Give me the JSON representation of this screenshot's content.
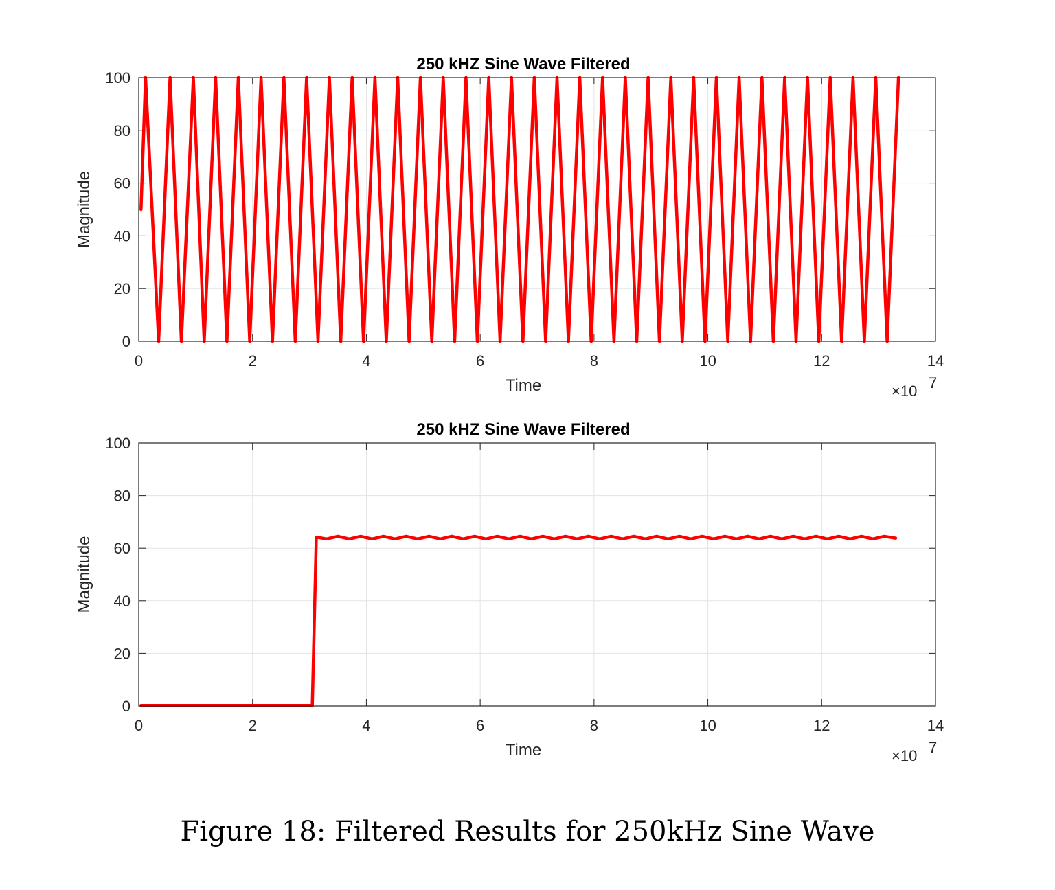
{
  "caption": "Figure 18: Filtered Results for 250kHz Sine Wave",
  "chart_data": [
    {
      "type": "line",
      "title": "250 kHZ Sine Wave Filtered",
      "xlabel": "Time",
      "ylabel": "Magnitude",
      "x_exponent_label": "×10",
      "x_exponent": "7",
      "xlim": [
        0,
        14
      ],
      "ylim": [
        0,
        100
      ],
      "xticks": [
        "0",
        "2",
        "4",
        "6",
        "8",
        "10",
        "12",
        "14"
      ],
      "yticks": [
        "0",
        "20",
        "40",
        "60",
        "80",
        "100"
      ],
      "grid": true,
      "color": "#ff0000",
      "series": [
        {
          "x": [
            0.04,
            0.12,
            0.35,
            0.55,
            0.75,
            0.96,
            1.15,
            1.35,
            1.55,
            1.75,
            1.95,
            2.15,
            2.35,
            2.55,
            2.75,
            2.95,
            3.15,
            3.35,
            3.55,
            3.75,
            3.95,
            4.15,
            4.35,
            4.55,
            4.75,
            4.95,
            5.15,
            5.35,
            5.55,
            5.75,
            5.95,
            6.15,
            6.35,
            6.55,
            6.75,
            6.95,
            7.15,
            7.35,
            7.55,
            7.75,
            7.95,
            8.15,
            8.35,
            8.55,
            8.75,
            8.95,
            9.15,
            9.35,
            9.55,
            9.75,
            9.95,
            10.15,
            10.35,
            10.55,
            10.75,
            10.95,
            11.15,
            11.35,
            11.55,
            11.75,
            11.95,
            12.15,
            12.35,
            12.55,
            12.75,
            12.95,
            13.15,
            13.35
          ],
          "y": [
            50,
            100,
            0,
            100,
            0,
            100,
            0,
            100,
            0,
            100,
            0,
            100,
            0,
            100,
            0,
            100,
            0,
            100,
            0,
            100,
            0,
            100,
            0,
            100,
            0,
            100,
            0,
            100,
            0,
            100,
            0,
            100,
            0,
            100,
            0,
            100,
            0,
            100,
            0,
            100,
            0,
            100,
            0,
            100,
            0,
            100,
            0,
            100,
            0,
            100,
            0,
            100,
            0,
            100,
            0,
            100,
            0,
            100,
            0,
            100,
            0,
            100,
            0,
            100,
            0,
            100,
            0,
            100
          ]
        }
      ]
    },
    {
      "type": "line",
      "title": "250 kHZ Sine Wave Filtered",
      "xlabel": "Time",
      "ylabel": "Magnitude",
      "x_exponent_label": "×10",
      "x_exponent": "7",
      "xlim": [
        0,
        14
      ],
      "ylim": [
        0,
        100
      ],
      "xticks": [
        "0",
        "2",
        "4",
        "6",
        "8",
        "10",
        "12",
        "14"
      ],
      "yticks": [
        "0",
        "20",
        "40",
        "60",
        "80",
        "100"
      ],
      "grid": true,
      "color": "#ff0000",
      "series": [
        {
          "x": [
            0.04,
            1.0,
            2.0,
            3.0,
            3.05,
            3.12,
            3.3,
            3.5,
            3.7,
            3.9,
            4.1,
            4.3,
            4.5,
            4.7,
            4.9,
            5.1,
            5.3,
            5.5,
            5.7,
            5.9,
            6.1,
            6.3,
            6.5,
            6.7,
            6.9,
            7.1,
            7.3,
            7.5,
            7.7,
            7.9,
            8.1,
            8.3,
            8.5,
            8.7,
            8.9,
            9.1,
            9.3,
            9.5,
            9.7,
            9.9,
            10.1,
            10.3,
            10.5,
            10.7,
            10.9,
            11.1,
            11.3,
            11.5,
            11.7,
            11.9,
            12.1,
            12.3,
            12.5,
            12.7,
            12.9,
            13.1,
            13.3
          ],
          "y": [
            0.2,
            0.2,
            0.2,
            0.2,
            0.2,
            64.2,
            63.5,
            64.5,
            63.5,
            64.5,
            63.5,
            64.5,
            63.5,
            64.5,
            63.5,
            64.5,
            63.5,
            64.5,
            63.5,
            64.5,
            63.5,
            64.5,
            63.5,
            64.5,
            63.5,
            64.5,
            63.5,
            64.5,
            63.5,
            64.5,
            63.5,
            64.5,
            63.5,
            64.5,
            63.5,
            64.5,
            63.5,
            64.5,
            63.5,
            64.5,
            63.5,
            64.5,
            63.5,
            64.5,
            63.5,
            64.5,
            63.5,
            64.5,
            63.5,
            64.5,
            63.5,
            64.5,
            63.5,
            64.5,
            63.5,
            64.5,
            63.8
          ]
        }
      ]
    }
  ]
}
